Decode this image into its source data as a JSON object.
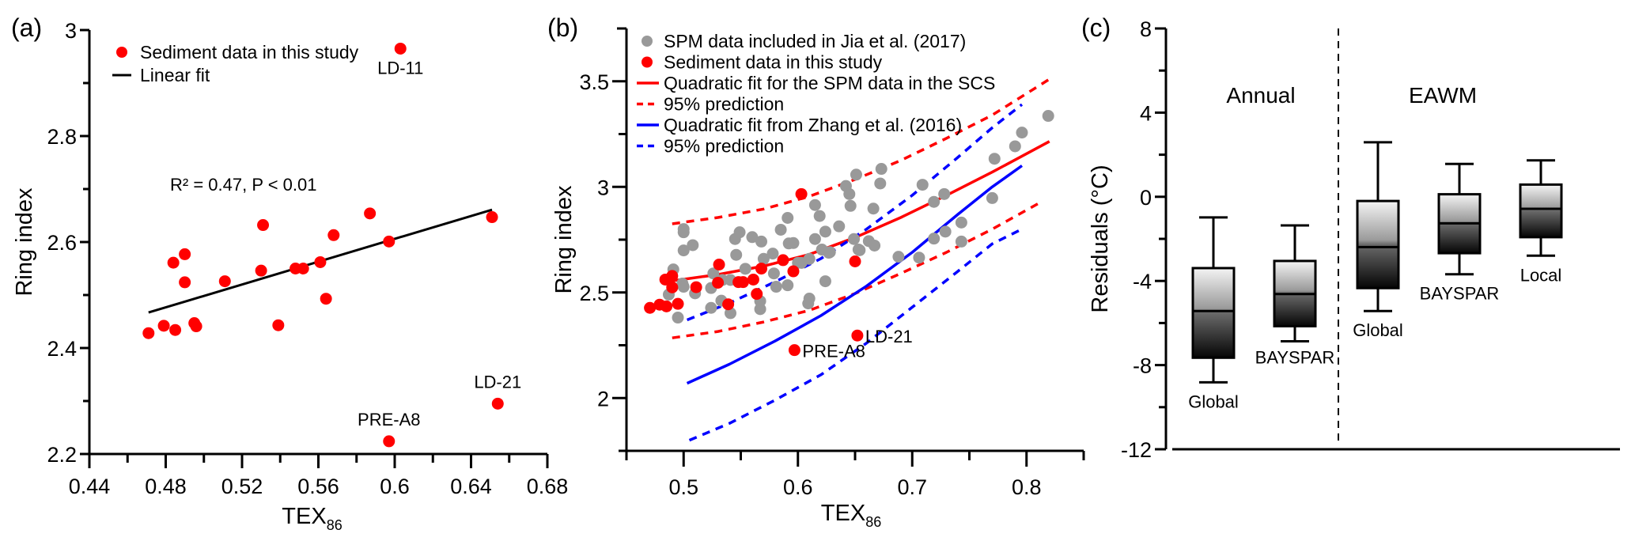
{
  "chart_data": [
    {
      "panel": "(a)",
      "type": "scatter",
      "xlabel": "TEX",
      "xlabel_sub": "86",
      "ylabel": "Ring index",
      "xlim": [
        0.44,
        0.68
      ],
      "ylim": [
        2.2,
        3.0
      ],
      "xticks": [
        0.44,
        0.48,
        0.52,
        0.56,
        0.6,
        0.64,
        0.68
      ],
      "xtick_labels": [
        "0.44",
        "0.48",
        "0.52",
        "0.56",
        "0.6",
        "0.64",
        "0.68"
      ],
      "yticks": [
        2.2,
        2.4,
        2.6,
        2.8,
        3.0
      ],
      "ytick_labels": [
        "2.2",
        "2.4",
        "2.6",
        "2.8",
        "3"
      ],
      "legend": [
        {
          "label": "Sediment data in this study",
          "marker": "circle",
          "color": "#ff0000"
        },
        {
          "label": "Linear fit",
          "marker": "line",
          "color": "#000000"
        }
      ],
      "annotation": "R² = 0.47, P < 0.01",
      "series": [
        {
          "name": "Sediment data in this study",
          "color": "#ff0000",
          "points": [
            [
              0.471,
              2.428
            ],
            [
              0.479,
              2.442
            ],
            [
              0.485,
              2.434
            ],
            [
              0.495,
              2.447
            ],
            [
              0.496,
              2.441
            ],
            [
              0.484,
              2.561
            ],
            [
              0.49,
              2.577
            ],
            [
              0.49,
              2.524
            ],
            [
              0.511,
              2.526
            ],
            [
              0.531,
              2.632
            ],
            [
              0.53,
              2.546
            ],
            [
              0.539,
              2.443
            ],
            [
              0.548,
              2.55
            ],
            [
              0.552,
              2.55
            ],
            [
              0.561,
              2.562
            ],
            [
              0.564,
              2.493
            ],
            [
              0.568,
              2.613
            ],
            [
              0.587,
              2.654
            ],
            [
              0.597,
              2.601
            ],
            [
              0.651,
              2.647
            ],
            [
              0.603,
              2.965
            ],
            [
              0.654,
              2.295
            ],
            [
              0.597,
              2.224
            ]
          ]
        }
      ],
      "fit_line": {
        "name": "Linear fit",
        "x": [
          0.471,
          0.651
        ],
        "y": [
          2.467,
          2.661
        ]
      },
      "point_labels": [
        {
          "text": "LD-11",
          "x": 0.603,
          "y": 2.965
        },
        {
          "text": "LD-21",
          "x": 0.654,
          "y": 2.295
        },
        {
          "text": "PRE-A8",
          "x": 0.597,
          "y": 2.224
        }
      ]
    },
    {
      "panel": "(b)",
      "type": "scatter",
      "xlabel": "TEX",
      "xlabel_sub": "86",
      "ylabel": "Ring index",
      "xlim": [
        0.45,
        0.85
      ],
      "ylim": [
        1.75,
        3.75
      ],
      "xticks": [
        0.5,
        0.6,
        0.7,
        0.8
      ],
      "xtick_labels": [
        "0.5",
        "0.6",
        "0.7",
        "0.8"
      ],
      "xminor": [
        0.45,
        0.55,
        0.65,
        0.75,
        0.85
      ],
      "yticks": [
        2.0,
        2.5,
        3.0,
        3.5
      ],
      "ytick_labels": [
        "2",
        "2.5",
        "3",
        "3.5"
      ],
      "yminor": [
        1.75,
        2.25,
        2.75,
        3.25,
        3.75
      ],
      "legend": [
        {
          "label": "SPM data included in Jia et al. (2017)",
          "marker": "circle",
          "color": "#999999"
        },
        {
          "label": "Sediment data in this study",
          "marker": "circle",
          "color": "#ff0000"
        },
        {
          "label": "Quadratic fit for the SPM data in the SCS",
          "marker": "line",
          "color": "#ff0000"
        },
        {
          "label": "95% prediction",
          "marker": "dashed",
          "color": "#ff0000"
        },
        {
          "label": "Quadratic fit from Zhang et al. (2016)",
          "marker": "line",
          "color": "#0000ff"
        },
        {
          "label": "95% prediction",
          "marker": "dashed",
          "color": "#0000ff"
        }
      ],
      "series": [
        {
          "name": "SPM data included in Jia et al. (2017)",
          "color": "#999999",
          "points": [
            [
              0.819,
              3.336
            ],
            [
              0.796,
              3.257
            ],
            [
              0.79,
              3.192
            ],
            [
              0.772,
              3.133
            ],
            [
              0.77,
              2.947
            ],
            [
              0.743,
              2.831
            ],
            [
              0.743,
              2.741
            ],
            [
              0.729,
              2.788
            ],
            [
              0.719,
              2.755
            ],
            [
              0.728,
              2.966
            ],
            [
              0.719,
              2.929
            ],
            [
              0.709,
              3.01
            ],
            [
              0.706,
              2.665
            ],
            [
              0.688,
              2.669
            ],
            [
              0.672,
              3.016
            ],
            [
              0.673,
              3.085
            ],
            [
              0.651,
              3.058
            ],
            [
              0.642,
              3.004
            ],
            [
              0.645,
              2.966
            ],
            [
              0.646,
              2.91
            ],
            [
              0.666,
              2.897
            ],
            [
              0.615,
              2.914
            ],
            [
              0.619,
              2.862
            ],
            [
              0.636,
              2.813
            ],
            [
              0.624,
              2.788
            ],
            [
              0.615,
              2.753
            ],
            [
              0.649,
              2.753
            ],
            [
              0.654,
              2.7
            ],
            [
              0.662,
              2.743
            ],
            [
              0.667,
              2.722
            ],
            [
              0.627,
              2.688
            ],
            [
              0.621,
              2.703
            ],
            [
              0.61,
              2.659
            ],
            [
              0.596,
              2.734
            ],
            [
              0.624,
              2.553
            ],
            [
              0.603,
              2.64
            ],
            [
              0.591,
              2.853
            ],
            [
              0.585,
              2.797
            ],
            [
              0.592,
              2.732
            ],
            [
              0.56,
              2.762
            ],
            [
              0.568,
              2.741
            ],
            [
              0.549,
              2.785
            ],
            [
              0.545,
              2.753
            ],
            [
              0.5,
              2.8
            ],
            [
              0.5,
              2.785
            ],
            [
              0.508,
              2.724
            ],
            [
              0.5,
              2.699
            ],
            [
              0.546,
              2.678
            ],
            [
              0.578,
              2.684
            ],
            [
              0.57,
              2.659
            ],
            [
              0.628,
              2.691
            ],
            [
              0.653,
              2.703
            ],
            [
              0.554,
              2.612
            ],
            [
              0.579,
              2.59
            ],
            [
              0.6,
              2.64
            ],
            [
              0.591,
              2.534
            ],
            [
              0.581,
              2.527
            ],
            [
              0.491,
              2.609
            ],
            [
              0.499,
              2.542
            ],
            [
              0.5,
              2.527
            ],
            [
              0.51,
              2.496
            ],
            [
              0.524,
              2.521
            ],
            [
              0.487,
              2.49
            ],
            [
              0.526,
              2.59
            ],
            [
              0.541,
              2.559
            ],
            [
              0.534,
              2.559
            ],
            [
              0.533,
              2.461
            ],
            [
              0.524,
              2.427
            ],
            [
              0.541,
              2.402
            ],
            [
              0.567,
              2.459
            ],
            [
              0.567,
              2.421
            ],
            [
              0.495,
              2.381
            ],
            [
              0.61,
              2.471
            ],
            [
              0.609,
              2.448
            ]
          ]
        },
        {
          "name": "Sediment data in this study",
          "color": "#ff0000",
          "points": [
            [
              0.4705,
              2.427
            ],
            [
              0.479,
              2.442
            ],
            [
              0.485,
              2.434
            ],
            [
              0.495,
              2.446
            ],
            [
              0.484,
              2.561
            ],
            [
              0.49,
              2.578
            ],
            [
              0.49,
              2.524
            ],
            [
              0.511,
              2.525
            ],
            [
              0.531,
              2.632
            ],
            [
              0.53,
              2.546
            ],
            [
              0.539,
              2.444
            ],
            [
              0.548,
              2.549
            ],
            [
              0.552,
              2.549
            ],
            [
              0.561,
              2.561
            ],
            [
              0.564,
              2.493
            ],
            [
              0.568,
              2.613
            ],
            [
              0.587,
              2.653
            ],
            [
              0.596,
              2.6
            ],
            [
              0.603,
              2.966
            ],
            [
              0.65,
              2.647
            ],
            [
              0.652,
              2.296
            ],
            [
              0.597,
              2.227
            ]
          ]
        }
      ],
      "curves": [
        {
          "name": "Quadratic fit for the SPM data in the SCS",
          "color": "#ff0000",
          "style": "solid",
          "x": [
            0.49,
            0.53,
            0.57,
            0.61,
            0.65,
            0.69,
            0.73,
            0.77,
            0.82
          ],
          "y": [
            2.555,
            2.585,
            2.625,
            2.68,
            2.76,
            2.855,
            2.96,
            3.07,
            3.215
          ]
        },
        {
          "name": "95% prediction (SCS upper)",
          "color": "#ff0000",
          "style": "dashed",
          "x": [
            0.49,
            0.53,
            0.57,
            0.61,
            0.65,
            0.69,
            0.73,
            0.77,
            0.82
          ],
          "y": [
            2.825,
            2.855,
            2.895,
            2.955,
            3.035,
            3.125,
            3.23,
            3.34,
            3.51
          ]
        },
        {
          "name": "95% prediction (SCS lower)",
          "color": "#ff0000",
          "style": "dashed",
          "x": [
            0.49,
            0.53,
            0.57,
            0.61,
            0.65,
            0.69,
            0.73,
            0.77,
            0.81
          ],
          "y": [
            2.285,
            2.315,
            2.36,
            2.415,
            2.495,
            2.59,
            2.69,
            2.8,
            2.92
          ]
        },
        {
          "name": "Quadratic fit from Zhang et al. (2016)",
          "color": "#0000ff",
          "style": "solid",
          "x": [
            0.503,
            0.54,
            0.58,
            0.62,
            0.66,
            0.7,
            0.74,
            0.77,
            0.796
          ],
          "y": [
            2.07,
            2.16,
            2.27,
            2.39,
            2.53,
            2.69,
            2.87,
            3.0,
            3.1
          ]
        },
        {
          "name": "95% prediction (Zhang upper)",
          "color": "#0000ff",
          "style": "dashed",
          "x": [
            0.503,
            0.54,
            0.58,
            0.62,
            0.66,
            0.7,
            0.74,
            0.77,
            0.796
          ],
          "y": [
            2.37,
            2.45,
            2.55,
            2.66,
            2.8,
            2.96,
            3.14,
            3.28,
            3.39
          ]
        },
        {
          "name": "95% prediction (Zhang lower)",
          "color": "#0000ff",
          "style": "dashed",
          "x": [
            0.505,
            0.54,
            0.58,
            0.62,
            0.66,
            0.7,
            0.74,
            0.77,
            0.796
          ],
          "y": [
            1.8,
            1.88,
            1.99,
            2.11,
            2.26,
            2.43,
            2.6,
            2.73,
            2.8
          ]
        }
      ],
      "point_labels": [
        {
          "text": "LD-21",
          "x": 0.652,
          "y": 2.296
        },
        {
          "text": "PRE-A8",
          "x": 0.597,
          "y": 2.227
        }
      ]
    },
    {
      "panel": "(c)",
      "type": "box",
      "ylabel": "Residuals (°C)",
      "ylim": [
        -12,
        8
      ],
      "yticks": [
        -12,
        -8,
        -4,
        0,
        4,
        8
      ],
      "ytick_labels": [
        "-12",
        "-8",
        "-4",
        "0",
        "4",
        "8"
      ],
      "yminor": [
        -10,
        -6,
        -2,
        2,
        6
      ],
      "groups": [
        {
          "title": "Annual",
          "boxes": [
            {
              "label": "Global",
              "min": -8.82,
              "q1": -7.65,
              "median": -5.43,
              "q3": -3.39,
              "max": -0.98
            },
            {
              "label": "BAYSPAR",
              "min": -6.87,
              "q1": -6.15,
              "median": -4.62,
              "q3": -3.05,
              "max": -1.36
            }
          ]
        },
        {
          "title": "EAWM",
          "boxes": [
            {
              "label": "Global",
              "min": -5.43,
              "q1": -4.34,
              "median": -2.39,
              "q3": -0.2,
              "max": 2.59
            },
            {
              "label": "BAYSPAR",
              "min": -3.68,
              "q1": -2.68,
              "median": -1.26,
              "q3": 0.12,
              "max": 1.56
            },
            {
              "label": "Local",
              "min": -2.8,
              "q1": -1.92,
              "median": -0.57,
              "q3": 0.58,
              "max": 1.73
            }
          ]
        }
      ]
    }
  ]
}
